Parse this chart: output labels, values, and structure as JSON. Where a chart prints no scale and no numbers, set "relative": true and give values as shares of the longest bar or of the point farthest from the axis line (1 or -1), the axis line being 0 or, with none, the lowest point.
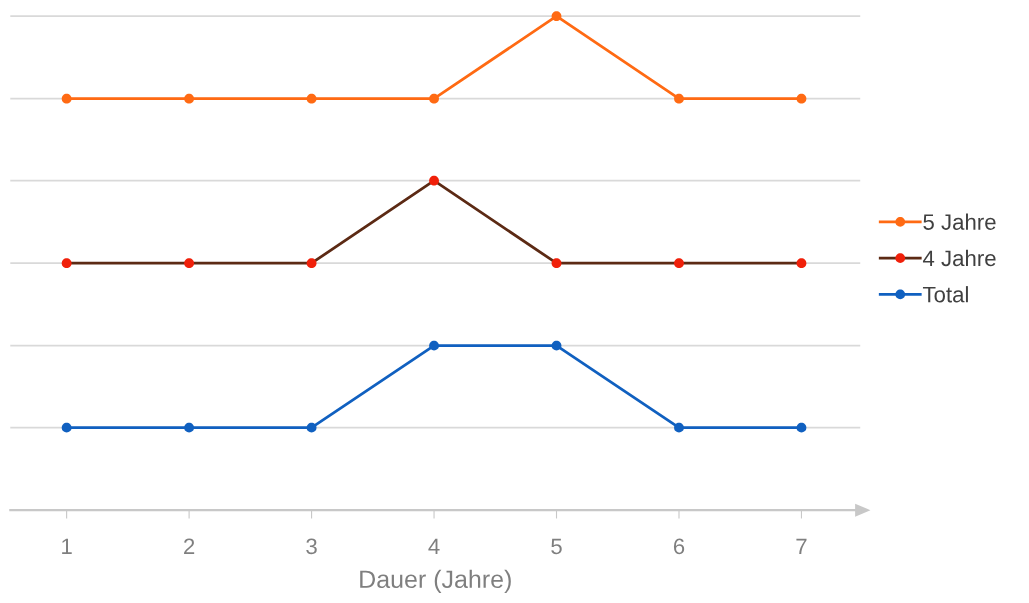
{
  "chart_data": {
    "type": "line",
    "relative": true,
    "xlabel": "Dauer (Jahre)",
    "x": [
      1,
      2,
      3,
      4,
      5,
      6,
      7
    ],
    "xlim": [
      0.54,
      7.48
    ],
    "xticks": [
      1,
      2,
      3,
      4,
      5,
      6,
      7
    ],
    "series": [
      {
        "name": "5 Jahre",
        "color": "#ff6a13",
        "values": [
          0.833,
          0.833,
          0.833,
          0.833,
          1,
          0.833,
          0.833
        ]
      },
      {
        "name": "4 Jahre",
        "color": "#5c2a14",
        "colors": [
          "#f0200a",
          "#f0200a",
          "#f0200a",
          "#f0200a",
          "#f0200a",
          "#f0200a",
          "#f0200a"
        ],
        "values": [
          0.5,
          0.5,
          0.5,
          0.667,
          0.5,
          0.5,
          0.5
        ]
      },
      {
        "name": "Total",
        "color": "#1060c0",
        "values": [
          0.167,
          0.167,
          0.167,
          0.333,
          0.333,
          0.167,
          0.167
        ]
      }
    ],
    "grid": "y",
    "legend": "right",
    "marker": "circle",
    "line_style": "solid"
  }
}
